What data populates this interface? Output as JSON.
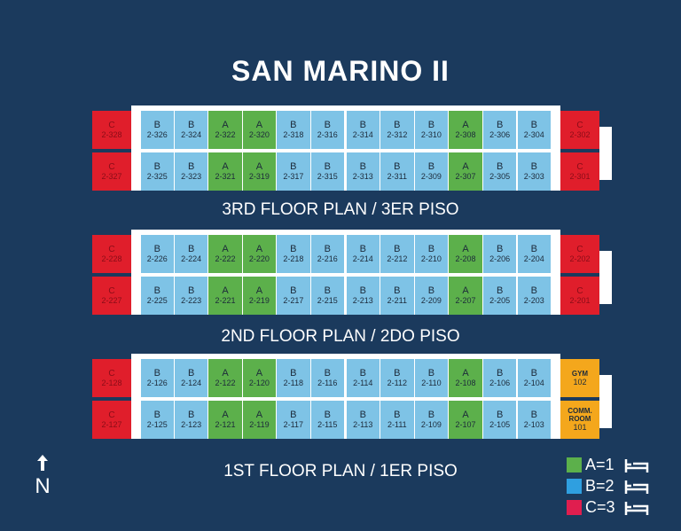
{
  "title": "SAN MARINO II",
  "palette": {
    "A": "#5cb04b",
    "B": "#7ec3e6",
    "C": "#e01e2b",
    "GYM": "#f4a71c",
    "COMM. ROOM": "#f4a71c"
  },
  "floors": [
    {
      "label": "3RD FLOOR PLAN / 3ER PISO",
      "left": [
        {
          "type": "C",
          "number": "2-328"
        },
        {
          "type": "C",
          "number": "2-327"
        }
      ],
      "rows": [
        [
          {
            "type": "B",
            "number": "2-326"
          },
          {
            "type": "B",
            "number": "2-324"
          },
          {
            "type": "A",
            "number": "2-322"
          },
          {
            "type": "A",
            "number": "2-320"
          },
          {
            "type": "B",
            "number": "2-318"
          },
          {
            "type": "B",
            "number": "2-316"
          },
          {
            "type": "B",
            "number": "2-314"
          },
          {
            "type": "B",
            "number": "2-312"
          },
          {
            "type": "B",
            "number": "2-310"
          },
          {
            "type": "A",
            "number": "2-308"
          },
          {
            "type": "B",
            "number": "2-306"
          },
          {
            "type": "B",
            "number": "2-304"
          }
        ],
        [
          {
            "type": "B",
            "number": "2-325"
          },
          {
            "type": "B",
            "number": "2-323"
          },
          {
            "type": "A",
            "number": "2-321"
          },
          {
            "type": "A",
            "number": "2-319"
          },
          {
            "type": "B",
            "number": "2-317"
          },
          {
            "type": "B",
            "number": "2-315"
          },
          {
            "type": "B",
            "number": "2-313"
          },
          {
            "type": "B",
            "number": "2-311"
          },
          {
            "type": "B",
            "number": "2-309"
          },
          {
            "type": "A",
            "number": "2-307"
          },
          {
            "type": "B",
            "number": "2-305"
          },
          {
            "type": "B",
            "number": "2-303"
          }
        ]
      ],
      "right": [
        {
          "type": "C",
          "number": "2-302"
        },
        {
          "type": "C",
          "number": "2-301"
        }
      ]
    },
    {
      "label": "2ND FLOOR PLAN / 2DO PISO",
      "left": [
        {
          "type": "C",
          "number": "2-228"
        },
        {
          "type": "C",
          "number": "2-227"
        }
      ],
      "rows": [
        [
          {
            "type": "B",
            "number": "2-226"
          },
          {
            "type": "B",
            "number": "2-224"
          },
          {
            "type": "A",
            "number": "2-222"
          },
          {
            "type": "A",
            "number": "2-220"
          },
          {
            "type": "B",
            "number": "2-218"
          },
          {
            "type": "B",
            "number": "2-216"
          },
          {
            "type": "B",
            "number": "2-214"
          },
          {
            "type": "B",
            "number": "2-212"
          },
          {
            "type": "B",
            "number": "2-210"
          },
          {
            "type": "A",
            "number": "2-208"
          },
          {
            "type": "B",
            "number": "2-206"
          },
          {
            "type": "B",
            "number": "2-204"
          }
        ],
        [
          {
            "type": "B",
            "number": "2-225"
          },
          {
            "type": "B",
            "number": "2-223"
          },
          {
            "type": "A",
            "number": "2-221"
          },
          {
            "type": "A",
            "number": "2-219"
          },
          {
            "type": "B",
            "number": "2-217"
          },
          {
            "type": "B",
            "number": "2-215"
          },
          {
            "type": "B",
            "number": "2-213"
          },
          {
            "type": "B",
            "number": "2-211"
          },
          {
            "type": "B",
            "number": "2-209"
          },
          {
            "type": "A",
            "number": "2-207"
          },
          {
            "type": "B",
            "number": "2-205"
          },
          {
            "type": "B",
            "number": "2-203"
          }
        ]
      ],
      "right": [
        {
          "type": "C",
          "number": "2-202"
        },
        {
          "type": "C",
          "number": "2-201"
        }
      ]
    },
    {
      "label": "1ST FLOOR PLAN / 1ER PISO",
      "left": [
        {
          "type": "C",
          "number": "2-128"
        },
        {
          "type": "C",
          "number": "2-127"
        }
      ],
      "rows": [
        [
          {
            "type": "B",
            "number": "2-126"
          },
          {
            "type": "B",
            "number": "2-124"
          },
          {
            "type": "A",
            "number": "2-122"
          },
          {
            "type": "A",
            "number": "2-120"
          },
          {
            "type": "B",
            "number": "2-118"
          },
          {
            "type": "B",
            "number": "2-116"
          },
          {
            "type": "B",
            "number": "2-114"
          },
          {
            "type": "B",
            "number": "2-112"
          },
          {
            "type": "B",
            "number": "2-110"
          },
          {
            "type": "A",
            "number": "2-108"
          },
          {
            "type": "B",
            "number": "2-106"
          },
          {
            "type": "B",
            "number": "2-104"
          }
        ],
        [
          {
            "type": "B",
            "number": "2-125"
          },
          {
            "type": "B",
            "number": "2-123"
          },
          {
            "type": "A",
            "number": "2-121"
          },
          {
            "type": "A",
            "number": "2-119"
          },
          {
            "type": "B",
            "number": "2-117"
          },
          {
            "type": "B",
            "number": "2-115"
          },
          {
            "type": "B",
            "number": "2-113"
          },
          {
            "type": "B",
            "number": "2-111"
          },
          {
            "type": "B",
            "number": "2-109"
          },
          {
            "type": "A",
            "number": "2-107"
          },
          {
            "type": "B",
            "number": "2-105"
          },
          {
            "type": "B",
            "number": "2-103"
          }
        ]
      ],
      "right": [
        {
          "type": "GYM",
          "number": "102"
        },
        {
          "type": "COMM. ROOM",
          "number": "101"
        }
      ]
    }
  ],
  "north": "N",
  "legend": [
    {
      "label": "A=1",
      "color": "#5cb04b"
    },
    {
      "label": "B=2",
      "color": "#2f9fe0"
    },
    {
      "label": "C=3",
      "color": "#e01e4f"
    }
  ]
}
